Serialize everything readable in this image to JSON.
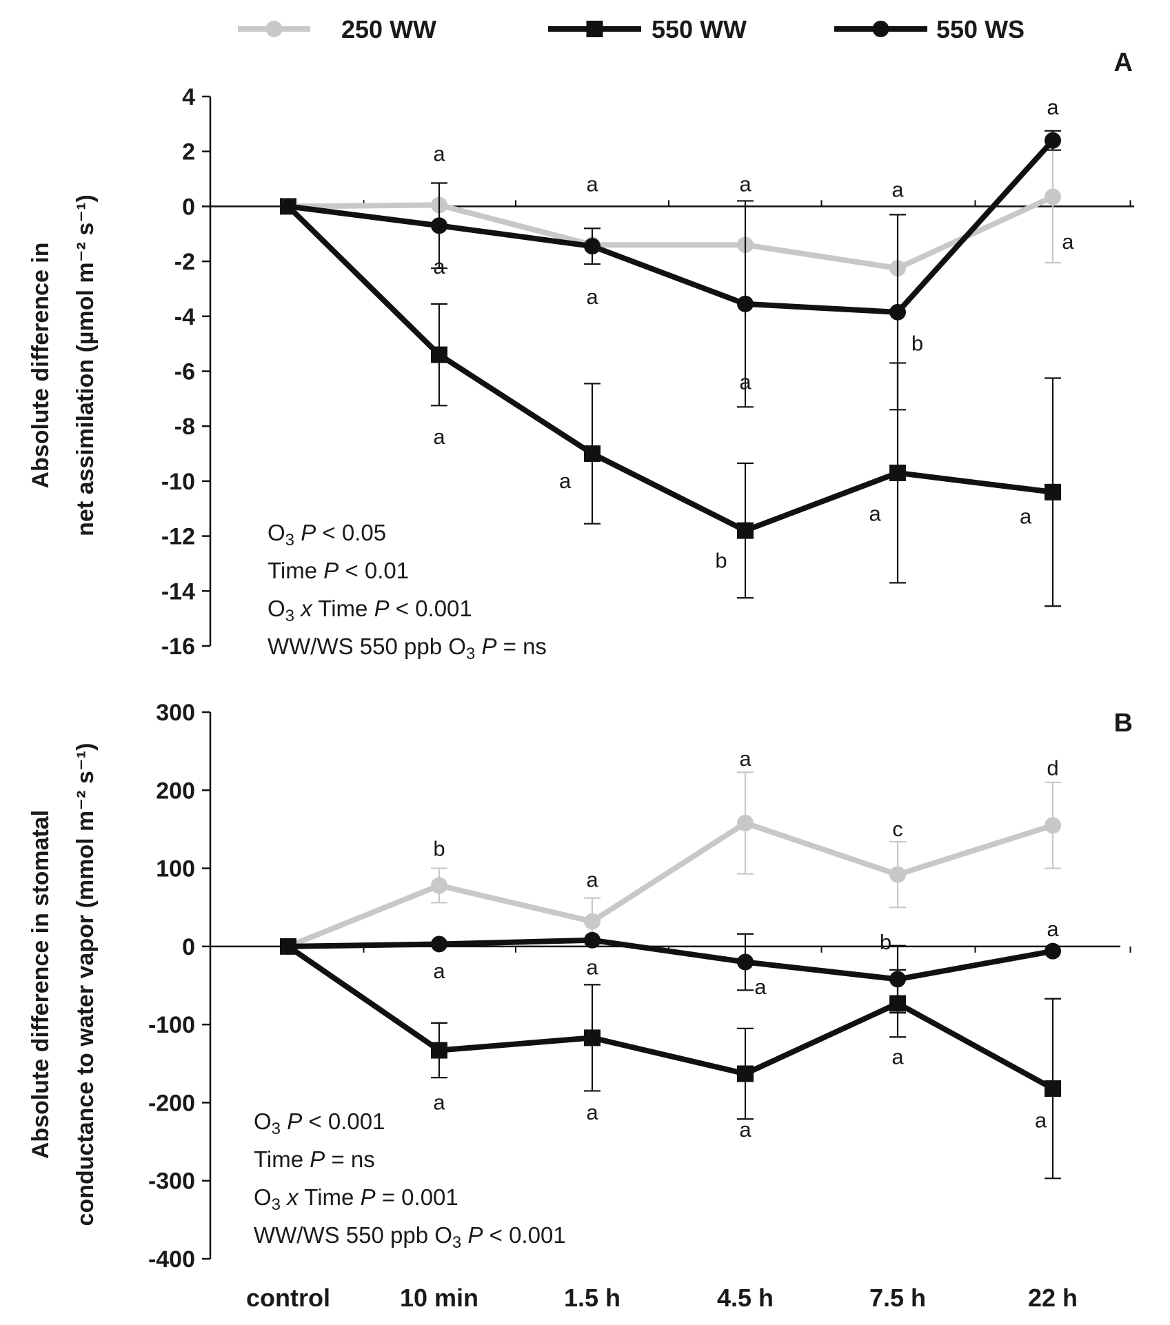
{
  "chart_data": {
    "type": "line",
    "legend": {
      "position": "top",
      "items": [
        {
          "name": "250 WW",
          "color": "#c8c8c8",
          "marker": "circle"
        },
        {
          "name": "550 WW",
          "color": "#111111",
          "marker": "square"
        },
        {
          "name": "550 WS",
          "color": "#111111",
          "marker": "circle"
        }
      ]
    },
    "categories": [
      "control",
      "10 min",
      "1.5 h",
      "4.5 h",
      "7.5 h",
      "22 h"
    ],
    "panels": [
      {
        "label": "A",
        "ylabel_lines": [
          "Absolute difference in",
          "net assimilation (µmol m⁻² s⁻¹)"
        ],
        "ylim": [
          -16,
          4
        ],
        "yticks": [
          4,
          2,
          0,
          -2,
          -4,
          -6,
          -8,
          -10,
          -12,
          -14,
          -16
        ],
        "series": [
          {
            "name": "550 WW",
            "values": [
              0,
              -5.4,
              -9.0,
              -11.8,
              -9.7,
              -10.4
            ],
            "errors": [
              0,
              1.85,
              2.55,
              2.45,
              4.0,
              4.15
            ]
          },
          {
            "name": "250 WW",
            "values": [
              0,
              0.05,
              -1.4,
              -1.4,
              -2.25,
              0.35
            ],
            "errors": [
              0,
              0,
              0,
              0,
              0,
              2.4
            ]
          },
          {
            "name": "550 WS",
            "values": [
              0,
              -0.7,
              -1.45,
              -3.55,
              -3.85,
              2.4
            ],
            "errors": [
              0,
              1.55,
              0.65,
              3.75,
              3.55,
              0.35
            ]
          }
        ],
        "letters": [
          {
            "text": "a",
            "x": "10 min",
            "y": 1.9
          },
          {
            "text": "a",
            "x": "1.5 h",
            "y": 0.8
          },
          {
            "text": "a",
            "x": "4.5 h",
            "y": 0.8
          },
          {
            "text": "a",
            "x": "7.5 h",
            "y": 0.6
          },
          {
            "text": "a",
            "x": "22 h",
            "y": 3.6
          },
          {
            "text": "a",
            "x": "10 min",
            "y": -2.2
          },
          {
            "text": "a",
            "x": "1.5 h",
            "y": -3.3
          },
          {
            "text": "a",
            "x": "22 h",
            "y": -1.3,
            "dx": 0.1
          },
          {
            "text": "b",
            "x": "7.5 h",
            "y": -5.0,
            "dx": 0.13
          },
          {
            "text": "a",
            "x": "4.5 h",
            "y": -6.4
          },
          {
            "text": "a",
            "x": "10 min",
            "y": -8.4
          },
          {
            "text": "a",
            "x": "1.5 h",
            "y": -10.0,
            "dx": -0.18
          },
          {
            "text": "b",
            "x": "4.5 h",
            "y": -12.9,
            "dx": -0.16
          },
          {
            "text": "a",
            "x": "7.5 h",
            "y": -11.2,
            "dx": -0.15
          },
          {
            "text": "a",
            "x": "22 h",
            "y": -11.3,
            "dx": -0.18
          }
        ],
        "stats": [
          [
            {
              "t": "O"
            },
            {
              "t": "3",
              "sub": true
            },
            {
              "t": "  "
            },
            {
              "t": "P",
              "italic": true
            },
            {
              "t": " < 0.05"
            }
          ],
          [
            {
              "t": "Time "
            },
            {
              "t": "P",
              "italic": true
            },
            {
              "t": " < 0.01"
            }
          ],
          [
            {
              "t": "O"
            },
            {
              "t": "3",
              "sub": true
            },
            {
              "t": "  "
            },
            {
              "t": "x",
              "italic": true
            },
            {
              "t": " Time "
            },
            {
              "t": "P",
              "italic": true
            },
            {
              "t": " < 0.001"
            }
          ],
          [
            {
              "t": "WW/WS 550 ppb O"
            },
            {
              "t": "3",
              "sub": true
            },
            {
              "t": " "
            },
            {
              "t": "P",
              "italic": true
            },
            {
              "t": " = ns"
            }
          ]
        ]
      },
      {
        "label": "B",
        "ylabel_lines": [
          "Absolute difference in stomatal",
          "conductance to water vapor (mmol m⁻² s⁻¹)"
        ],
        "ylim": [
          -400,
          300
        ],
        "yticks": [
          300,
          200,
          100,
          0,
          -100,
          -200,
          -300,
          -400
        ],
        "series": [
          {
            "name": "250 WW",
            "values": [
              0,
              78,
              32,
              158,
              92,
              155
            ],
            "errors": [
              0,
              22,
              30,
              65,
              42,
              55
            ]
          },
          {
            "name": "550 WW",
            "values": [
              0,
              -133,
              -117,
              -163,
              -73,
              -182
            ],
            "errors": [
              0,
              35,
              68,
              58,
              43,
              115
            ]
          },
          {
            "name": "550 WS",
            "values": [
              0,
              3,
              8,
              -20,
              -42,
              -6
            ],
            "errors": [
              0,
              0,
              0,
              36,
              43,
              0
            ]
          }
        ],
        "letters": [
          {
            "text": "b",
            "x": "10 min",
            "y": 125
          },
          {
            "text": "a",
            "x": "1.5 h",
            "y": 85
          },
          {
            "text": "a",
            "x": "4.5 h",
            "y": 240
          },
          {
            "text": "c",
            "x": "7.5 h",
            "y": 150
          },
          {
            "text": "d",
            "x": "22 h",
            "y": 228
          },
          {
            "text": "b",
            "x": "7.5 h",
            "y": 5,
            "dx": -0.08
          },
          {
            "text": "a",
            "x": "22 h",
            "y": 22
          },
          {
            "text": "a",
            "x": "10 min",
            "y": -32
          },
          {
            "text": "a",
            "x": "1.5 h",
            "y": -27
          },
          {
            "text": "a",
            "x": "4.5 h",
            "y": -52,
            "dx": 0.1
          },
          {
            "text": "a",
            "x": "7.5 h",
            "y": -142
          },
          {
            "text": "a",
            "x": "10 min",
            "y": -200
          },
          {
            "text": "a",
            "x": "1.5 h",
            "y": -213
          },
          {
            "text": "a",
            "x": "4.5 h",
            "y": -235
          },
          {
            "text": "a",
            "x": "22 h",
            "y": -223,
            "dx": -0.08
          }
        ],
        "stats": [
          [
            {
              "t": "O"
            },
            {
              "t": "3",
              "sub": true
            },
            {
              "t": "  "
            },
            {
              "t": "P",
              "italic": true
            },
            {
              "t": " < 0.001"
            }
          ],
          [
            {
              "t": "Time "
            },
            {
              "t": "P",
              "italic": true
            },
            {
              "t": " = ns"
            }
          ],
          [
            {
              "t": "O"
            },
            {
              "t": "3",
              "sub": true
            },
            {
              "t": "  "
            },
            {
              "t": "x",
              "italic": true
            },
            {
              "t": " Time "
            },
            {
              "t": "P",
              "italic": true
            },
            {
              "t": " = 0.001"
            }
          ],
          [
            {
              "t": "WW/WS 550 ppb O"
            },
            {
              "t": "3",
              "sub": true
            },
            {
              "t": " "
            },
            {
              "t": "P",
              "italic": true
            },
            {
              "t": " < 0.001"
            }
          ]
        ]
      }
    ]
  }
}
